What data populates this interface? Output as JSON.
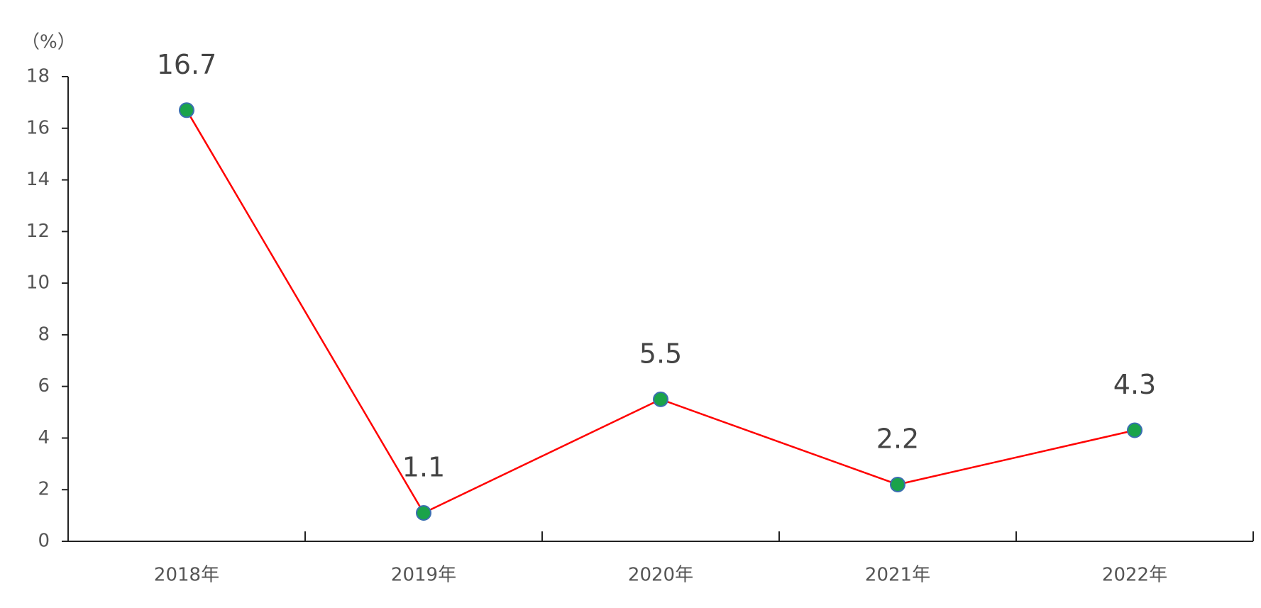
{
  "chart_data": {
    "type": "line",
    "y_label": "（%）",
    "categories": [
      "2018年",
      "2019年",
      "2020年",
      "2021年",
      "2022年"
    ],
    "values": [
      16.7,
      1.1,
      5.5,
      2.2,
      4.3
    ],
    "color": "#ff0000",
    "marker_color": "#1aa34a",
    "ylim": [
      0,
      18
    ],
    "yticks": [
      0,
      2,
      4,
      6,
      8,
      10,
      12,
      14,
      16,
      18
    ]
  }
}
